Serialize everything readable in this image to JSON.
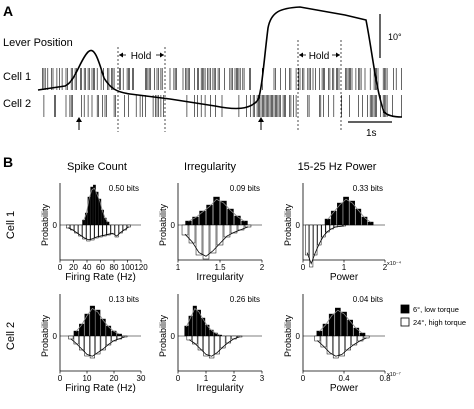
{
  "panel_a": {
    "label": "A",
    "lever_label": "Lever Position",
    "cell1_label": "Cell 1",
    "cell2_label": "Cell 2",
    "hold_label": "Hold",
    "scale_deg": "10°",
    "scale_time": "1s"
  },
  "panel_b": {
    "label": "B",
    "col_titles": [
      "Spike Count",
      "Irregularity",
      "15-25 Hz Power"
    ],
    "row_labels": [
      "Cell 1",
      "Cell 2"
    ],
    "ylabel": "Probability",
    "legend": {
      "dark": "6°, low torque",
      "light": "24°, high torque",
      "dark_color": "#000000",
      "light_color": "#ffffff"
    }
  },
  "chart_data": [
    {
      "type": "bar",
      "title": "Spike Count",
      "row": "Cell 1",
      "bits": "0.50 bits",
      "xlabel": "Firing Rate (Hz)",
      "ylabel": "Probability",
      "xlim": [
        0,
        120
      ],
      "xticks": [
        "0",
        "20",
        "40",
        "60",
        "80",
        "100",
        "120"
      ],
      "xmult": "",
      "series": [
        {
          "name": "6°, low torque",
          "x": [
            35,
            39,
            43,
            47,
            51,
            55,
            59,
            63,
            67,
            71
          ],
          "values": [
            0.05,
            0.12,
            0.28,
            0.38,
            0.4,
            0.33,
            0.26,
            0.15,
            0.07,
            0.03
          ]
        },
        {
          "name": "24°, high torque",
          "x": [
            12,
            18,
            24,
            30,
            36,
            42,
            48,
            54,
            60,
            66,
            72,
            78,
            84,
            90,
            96,
            102
          ],
          "values": [
            0.03,
            0.05,
            0.08,
            0.11,
            0.14,
            0.16,
            0.15,
            0.13,
            0.12,
            0.11,
            0.1,
            0.09,
            0.12,
            0.08,
            0.05,
            0.02
          ]
        }
      ]
    },
    {
      "type": "bar",
      "title": "Irregularity",
      "row": "Cell 1",
      "bits": "0.09 bits",
      "xlabel": "Irregularity",
      "ylabel": "Probability",
      "xlim": [
        0.9,
        2.1
      ],
      "xticks": [
        "1",
        "1.5",
        "2"
      ],
      "xmult": "",
      "series": [
        {
          "name": "6°, low torque",
          "x": [
            1.05,
            1.15,
            1.25,
            1.35,
            1.45,
            1.55,
            1.65,
            1.75,
            1.85
          ],
          "values": [
            0.04,
            0.08,
            0.14,
            0.2,
            0.28,
            0.24,
            0.16,
            0.09,
            0.04
          ]
        },
        {
          "name": "24°, high torque",
          "x": [
            1.0,
            1.1,
            1.2,
            1.3,
            1.4,
            1.5,
            1.6,
            1.7,
            1.8,
            1.9
          ],
          "values": [
            0.1,
            0.18,
            0.3,
            0.34,
            0.28,
            0.2,
            0.12,
            0.08,
            0.05,
            0.02
          ]
        }
      ]
    },
    {
      "type": "bar",
      "title": "15-25 Hz Power",
      "row": "Cell 1",
      "bits": "0.33 bits",
      "xlabel": "Power",
      "ylabel": "Probability",
      "xlim": [
        0,
        2
      ],
      "xticks": [
        "0",
        "1",
        "2"
      ],
      "xmult": "x10⁻⁴",
      "series": [
        {
          "name": "6°, low torque",
          "x": [
            0.6,
            0.75,
            0.9,
            1.05,
            1.2,
            1.35,
            1.5,
            1.65
          ],
          "values": [
            0.06,
            0.14,
            0.22,
            0.28,
            0.24,
            0.16,
            0.08,
            0.03
          ]
        },
        {
          "name": "24°, high torque",
          "x": [
            0.1,
            0.2,
            0.3,
            0.4,
            0.5,
            0.6,
            0.7,
            0.8,
            1.0
          ],
          "values": [
            0.3,
            0.42,
            0.3,
            0.2,
            0.12,
            0.07,
            0.04,
            0.02,
            0.01
          ]
        }
      ]
    },
    {
      "type": "bar",
      "title": "Spike Count",
      "row": "Cell 2",
      "bits": "0.13 bits",
      "xlabel": "Firing Rate (Hz)",
      "ylabel": "Probability",
      "xlim": [
        0,
        30
      ],
      "xticks": [
        "0",
        "10",
        "20",
        "30"
      ],
      "xmult": "",
      "series": [
        {
          "name": "6°, low torque",
          "x": [
            6,
            8,
            10,
            12,
            14,
            16,
            18,
            20,
            22
          ],
          "values": [
            0.05,
            0.12,
            0.22,
            0.3,
            0.26,
            0.17,
            0.1,
            0.05,
            0.02
          ]
        },
        {
          "name": "24°, high torque",
          "x": [
            4,
            6,
            8,
            10,
            12,
            14,
            16,
            18,
            20,
            22,
            24
          ],
          "values": [
            0.03,
            0.08,
            0.14,
            0.2,
            0.22,
            0.18,
            0.14,
            0.09,
            0.05,
            0.03,
            0.01
          ]
        }
      ]
    },
    {
      "type": "bar",
      "title": "Irregularity",
      "row": "Cell 2",
      "bits": "0.26 bits",
      "xlabel": "Irregularity",
      "ylabel": "Probability",
      "xlim": [
        0,
        3
      ],
      "xticks": [
        "0",
        "1",
        "2",
        "3"
      ],
      "xmult": "",
      "series": [
        {
          "name": "6°, low torque",
          "x": [
            0.3,
            0.45,
            0.6,
            0.75,
            0.9,
            1.05,
            1.2,
            1.35,
            1.5
          ],
          "values": [
            0.1,
            0.2,
            0.3,
            0.26,
            0.18,
            0.11,
            0.06,
            0.03,
            0.01
          ]
        },
        {
          "name": "24°, high torque",
          "x": [
            0.4,
            0.6,
            0.8,
            1.0,
            1.2,
            1.4,
            1.6,
            1.8,
            2.0,
            2.2
          ],
          "values": [
            0.04,
            0.08,
            0.14,
            0.2,
            0.22,
            0.18,
            0.12,
            0.07,
            0.03,
            0.01
          ]
        }
      ]
    },
    {
      "type": "bar",
      "title": "15-25 Hz Power",
      "row": "Cell 2",
      "bits": "0.04 bits",
      "xlabel": "Power",
      "ylabel": "Probability",
      "xlim": [
        0,
        0.8
      ],
      "xticks": [
        "0",
        "0.4",
        "0.8"
      ],
      "xmult": "x10⁻⁷",
      "series": [
        {
          "name": "6°, low torque",
          "x": [
            0.16,
            0.22,
            0.28,
            0.34,
            0.4,
            0.46,
            0.52,
            0.58
          ],
          "values": [
            0.05,
            0.12,
            0.22,
            0.28,
            0.24,
            0.16,
            0.08,
            0.03
          ]
        },
        {
          "name": "24°, high torque",
          "x": [
            0.14,
            0.2,
            0.26,
            0.32,
            0.38,
            0.44,
            0.5,
            0.56,
            0.62
          ],
          "values": [
            0.05,
            0.11,
            0.18,
            0.22,
            0.2,
            0.14,
            0.09,
            0.05,
            0.02
          ]
        }
      ]
    }
  ]
}
